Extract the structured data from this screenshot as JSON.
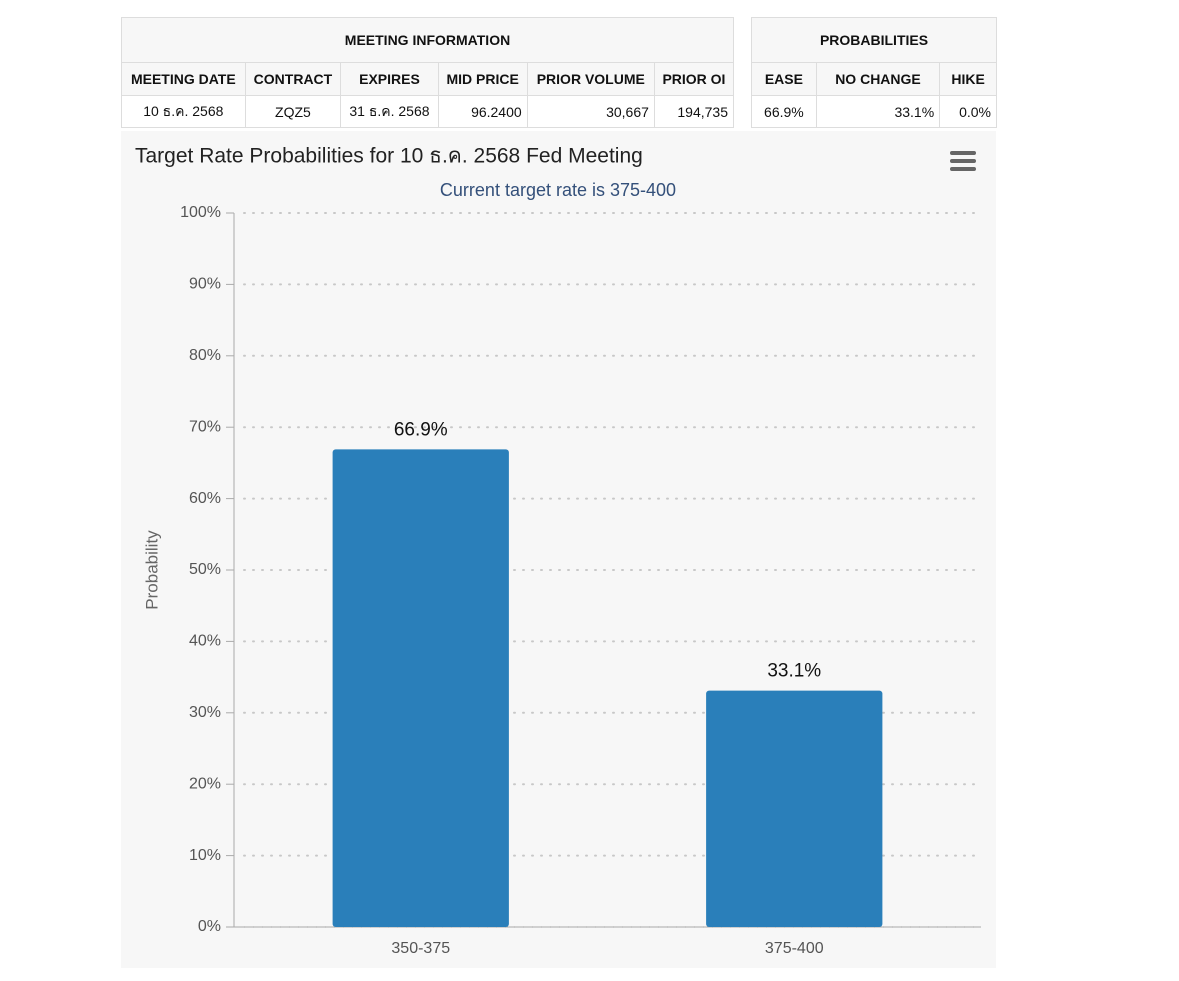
{
  "meeting_table": {
    "title": "MEETING INFORMATION",
    "columns": [
      "MEETING DATE",
      "CONTRACT",
      "EXPIRES",
      "MID PRICE",
      "PRIOR VOLUME",
      "PRIOR OI"
    ],
    "rows": [
      [
        "10 ธ.ค. 2568",
        "ZQZ5",
        "31 ธ.ค. 2568",
        "96.2400",
        "30,667",
        "194,735"
      ]
    ]
  },
  "probabilities_table": {
    "title": "PROBABILITIES",
    "columns": [
      "EASE",
      "NO CHANGE",
      "HIKE"
    ],
    "rows": [
      [
        "66.9%",
        "33.1%",
        "0.0%"
      ]
    ]
  },
  "chart_data": {
    "type": "bar",
    "title": "Target Rate Probabilities for 10 ธ.ค. 2568 Fed Meeting",
    "subtitle": "Current target rate is 375-400",
    "y_label": "Probability",
    "categories": [
      "350-375",
      "375-400"
    ],
    "values": [
      66.9,
      33.1
    ],
    "value_labels": [
      "66.9%",
      "33.1%"
    ],
    "color": "#2a7fba",
    "ylim": [
      0,
      100
    ],
    "yticks": [
      {
        "value": 0,
        "label": "0%"
      },
      {
        "value": 10,
        "label": "10%"
      },
      {
        "value": 20,
        "label": "20%"
      },
      {
        "value": 30,
        "label": "30%"
      },
      {
        "value": 40,
        "label": "40%"
      },
      {
        "value": 50,
        "label": "50%"
      },
      {
        "value": 60,
        "label": "60%"
      },
      {
        "value": 70,
        "label": "70%"
      },
      {
        "value": 80,
        "label": "80%"
      },
      {
        "value": 90,
        "label": "90%"
      },
      {
        "value": 100,
        "label": "100%"
      }
    ],
    "grid": true
  }
}
